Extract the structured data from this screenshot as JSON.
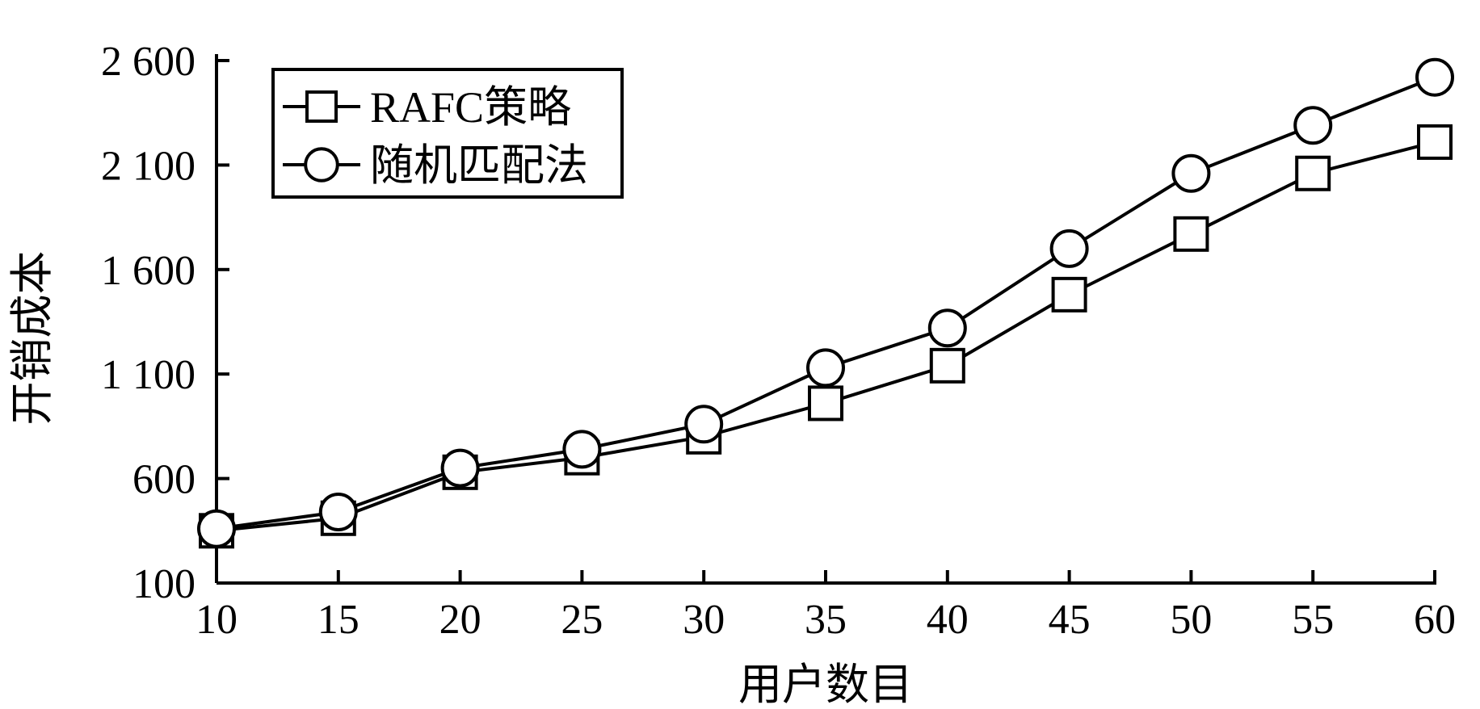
{
  "chart_data": {
    "type": "line",
    "xlabel": "用户数目",
    "ylabel": "开销成本",
    "xlim": [
      10,
      60
    ],
    "ylim": [
      100,
      2600
    ],
    "x": [
      10,
      15,
      20,
      25,
      30,
      35,
      40,
      45,
      50,
      55,
      60
    ],
    "xticks": [
      "10",
      "15",
      "20",
      "25",
      "30",
      "35",
      "40",
      "45",
      "50",
      "55",
      "60"
    ],
    "yticks": [
      {
        "value": 100,
        "label": "100"
      },
      {
        "value": 600,
        "label": "600"
      },
      {
        "value": 1100,
        "label": "1 100"
      },
      {
        "value": 1600,
        "label": "1 600"
      },
      {
        "value": 2100,
        "label": "2 100"
      },
      {
        "value": 2600,
        "label": "2 600"
      }
    ],
    "legend_position": "top-left",
    "grid": false,
    "series": [
      {
        "name": "RAFC策略",
        "marker": "square",
        "color": "#000000",
        "values": [
          350,
          410,
          630,
          700,
          800,
          960,
          1140,
          1480,
          1770,
          2060,
          2210
        ]
      },
      {
        "name": "随机匹配法",
        "marker": "circle",
        "color": "#000000",
        "values": [
          360,
          440,
          650,
          740,
          860,
          1130,
          1320,
          1700,
          2060,
          2290,
          2520
        ]
      }
    ]
  }
}
